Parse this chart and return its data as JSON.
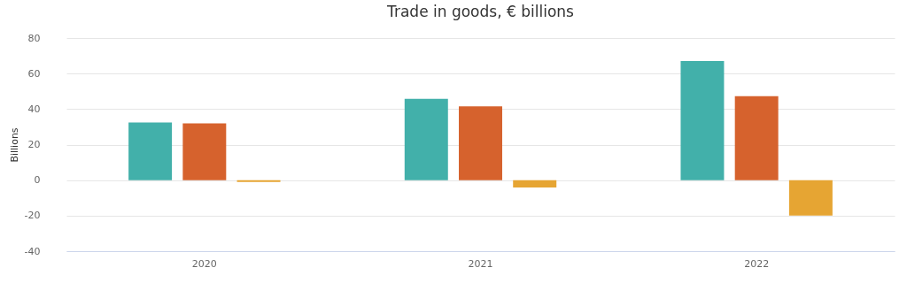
{
  "chart_data": {
    "type": "bar",
    "title": "Trade in goods, € billions",
    "ylabel": "Billions",
    "categories": [
      "2020",
      "2021",
      "2022"
    ],
    "series": [
      {
        "color": "#42b0aa",
        "values": [
          32.4,
          45.8,
          67.1
        ]
      },
      {
        "color": "#d6622d",
        "values": [
          31.9,
          41.5,
          47.3
        ]
      },
      {
        "color": "#e6a533",
        "values": [
          -1,
          -4.1,
          -20
        ]
      }
    ],
    "ylim": [
      -40,
      80
    ],
    "yticks": [
      -40,
      -20,
      0,
      20,
      40,
      60,
      80
    ],
    "grid": "y",
    "legend": false
  }
}
